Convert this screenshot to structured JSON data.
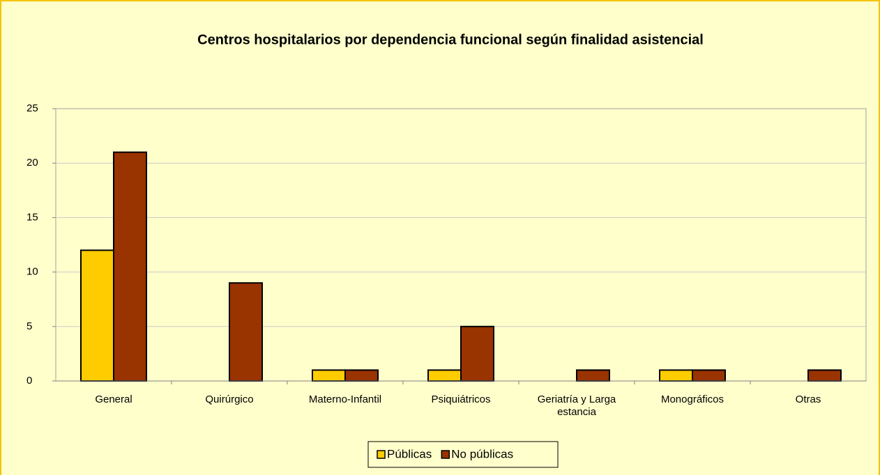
{
  "chart_data": {
    "type": "bar",
    "title": "Centros hospitalarios por dependencia funcional según finalidad asistencial",
    "categories": [
      "General",
      "Quirúrgico",
      "Materno-Infantil",
      "Psiquiátricos",
      "Geriatría y Larga estancia",
      "Monográficos",
      "Otras"
    ],
    "series": [
      {
        "name": "Públicas",
        "color": "#ffcc00",
        "values": [
          12,
          0,
          1,
          1,
          0,
          1,
          0
        ]
      },
      {
        "name": "No públicas",
        "color": "#993300",
        "values": [
          21,
          9,
          1,
          5,
          1,
          1,
          1
        ]
      }
    ],
    "ylim": [
      0,
      25
    ],
    "yticks": [
      0,
      5,
      10,
      15,
      20,
      25
    ],
    "grid": true,
    "legend": "bottom"
  }
}
